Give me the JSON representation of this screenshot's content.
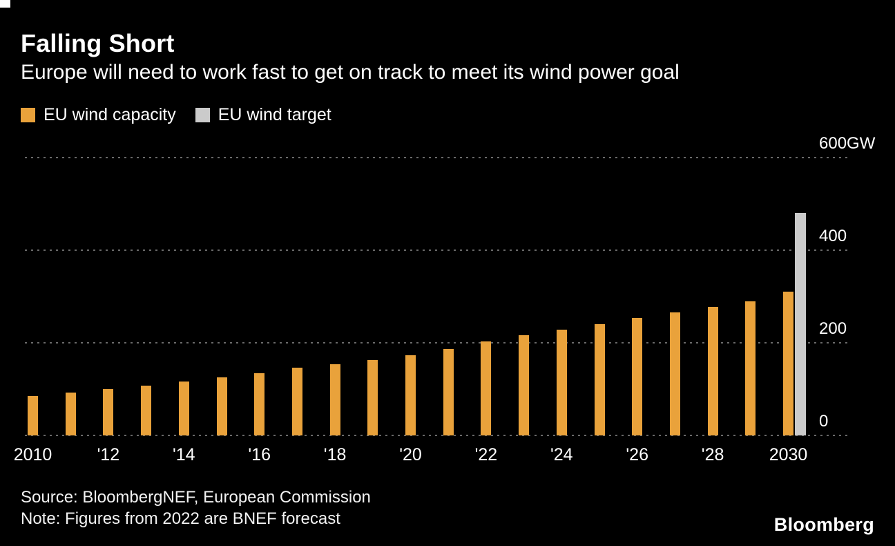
{
  "chart_data": {
    "type": "bar",
    "title": "Falling Short",
    "subtitle": "Europe will need to work fast to get on track to meet its wind power goal",
    "unit": "GW",
    "categories": [
      2010,
      2011,
      2012,
      2013,
      2014,
      2015,
      2016,
      2017,
      2018,
      2019,
      2020,
      2021,
      2022,
      2023,
      2024,
      2025,
      2026,
      2027,
      2028,
      2029,
      2030
    ],
    "series": [
      {
        "name": "EU wind capacity",
        "color": "#E9A23B",
        "values": [
          85,
          92,
          100,
          108,
          116,
          125,
          135,
          147,
          153,
          163,
          173,
          187,
          203,
          216,
          229,
          241,
          253,
          265,
          278,
          290,
          310
        ]
      }
    ],
    "target": {
      "name": "EU wind target",
      "year": 2030,
      "value": 480,
      "color": "#CBCBCB"
    },
    "ylim": [
      0,
      600
    ],
    "yticks": [
      {
        "value": 0,
        "label": "0"
      },
      {
        "value": 200,
        "label": "200"
      },
      {
        "value": 400,
        "label": "400"
      },
      {
        "value": 600,
        "label": "600GW"
      }
    ],
    "xticks": [
      {
        "year": 2010,
        "label": "2010"
      },
      {
        "year": 2012,
        "label": "'12"
      },
      {
        "year": 2014,
        "label": "'14"
      },
      {
        "year": 2016,
        "label": "'16"
      },
      {
        "year": 2018,
        "label": "'18"
      },
      {
        "year": 2020,
        "label": "'20"
      },
      {
        "year": 2022,
        "label": "'22"
      },
      {
        "year": 2024,
        "label": "'24"
      },
      {
        "year": 2026,
        "label": "'26"
      },
      {
        "year": 2028,
        "label": "'28"
      },
      {
        "year": 2030,
        "label": "2030"
      }
    ],
    "grid": "horizontal-dotted",
    "legend_position": "top-left",
    "colors": {
      "background": "#000000",
      "text": "#FFFFFF",
      "gridline": "#6A6A6A"
    }
  },
  "footer": {
    "source": "Source: BloombergNEF, European Commission",
    "note": "Note: Figures from 2022 are BNEF forecast",
    "logo": "Bloomberg"
  }
}
